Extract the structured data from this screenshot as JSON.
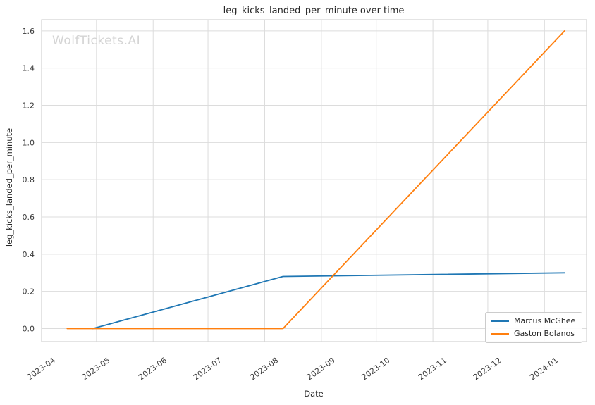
{
  "figure": {
    "watermark": "WolfTickets.AI"
  },
  "chart_data": {
    "type": "line",
    "title": "leg_kicks_landed_per_minute over time",
    "xlabel": "Date",
    "ylabel": "leg_kicks_landed_per_minute",
    "x_tick_labels": [
      "2023-04",
      "2023-05",
      "2023-06",
      "2023-07",
      "2023-08",
      "2023-09",
      "2023-10",
      "2023-11",
      "2023-12",
      "2024-01"
    ],
    "y_ticks": [
      0.0,
      0.2,
      0.4,
      0.6,
      0.8,
      1.0,
      1.2,
      1.4,
      1.6
    ],
    "xlim": [
      "2023-04-01",
      "2024-01-24"
    ],
    "ylim": [
      -0.07,
      1.66
    ],
    "grid": true,
    "legend": {
      "position": "lower right",
      "entries": [
        "Marcus McGhee",
        "Gaston Bolanos"
      ]
    },
    "series": [
      {
        "name": "Marcus McGhee",
        "color": "#1f77b4",
        "points": [
          [
            "2023-04-29",
            0.0
          ],
          [
            "2023-08-11",
            0.28
          ],
          [
            "2024-01-12",
            0.3
          ]
        ]
      },
      {
        "name": "Gaston Bolanos",
        "color": "#ff7f0e",
        "points": [
          [
            "2023-04-15",
            0.0
          ],
          [
            "2023-08-11",
            0.0
          ],
          [
            "2024-01-12",
            1.6
          ]
        ]
      }
    ],
    "colors": {
      "grid": "#dcdcdc",
      "spine": "#d3d3d3",
      "title_text": "#262626",
      "tick_text": "#3b3b3b",
      "watermark": "#d4d4d4"
    }
  }
}
